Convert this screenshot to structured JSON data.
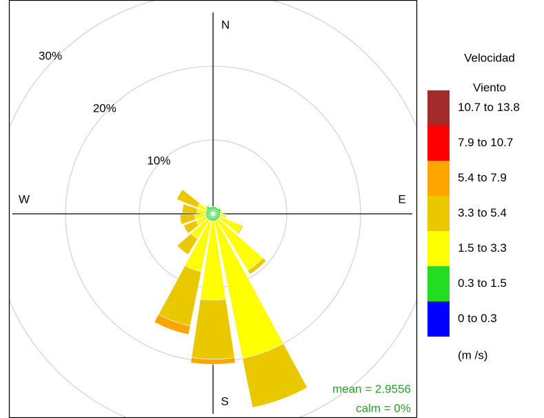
{
  "chart_data": {
    "type": "windrose",
    "compass": [
      "N",
      "E",
      "S",
      "W"
    ],
    "directions": [
      0,
      20,
      40,
      60,
      80,
      100,
      120,
      140,
      160,
      180,
      200,
      220,
      240,
      260,
      280,
      300,
      320,
      340
    ],
    "series": [
      {
        "name": "0 to 0.3",
        "color": "#0000ff",
        "values": [
          0,
          0,
          0,
          0,
          0,
          0,
          0,
          0,
          0,
          0,
          0,
          0,
          0,
          0,
          0,
          0,
          0,
          0
        ]
      },
      {
        "name": "0.3 to 1.5",
        "color": "#22dd22",
        "values": [
          1,
          1,
          1,
          1.2,
          1,
          1,
          1,
          1,
          1,
          1,
          1,
          1,
          1,
          1,
          1,
          1,
          1.2,
          1
        ]
      },
      {
        "name": "1.5 to 3.3",
        "color": "#ffff00",
        "values": [
          0,
          0,
          0,
          0,
          0.3,
          0.8,
          3.2,
          8,
          19,
          10.7,
          7,
          3,
          1.5,
          1.5,
          1.2,
          1.3,
          0.2,
          0
        ]
      },
      {
        "name": "3.3 to 5.4",
        "color": "#eac800",
        "values": [
          0,
          0,
          0,
          0,
          0,
          0,
          0.2,
          0.6,
          6.8,
          8,
          7.5,
          2.5,
          1.8,
          2,
          2,
          3,
          0,
          0
        ]
      },
      {
        "name": "5.4 to 7.9",
        "color": "#ffa500",
        "values": [
          0,
          0,
          0,
          0,
          0,
          0,
          0,
          0,
          0,
          0.7,
          1.2,
          0,
          0,
          0,
          0,
          0,
          0,
          0
        ]
      },
      {
        "name": "7.9 to 10.7",
        "color": "#ff0000",
        "values": [
          0,
          0,
          0,
          0,
          0,
          0,
          0,
          0,
          0,
          0,
          0,
          0,
          0,
          0,
          0,
          0,
          0,
          0
        ]
      },
      {
        "name": "10.7 to 13.8",
        "color": "#a52a2a",
        "values": [
          0,
          0,
          0,
          0,
          0,
          0,
          0,
          0,
          0,
          0,
          0,
          0,
          0,
          0,
          0,
          0,
          0,
          0
        ]
      }
    ],
    "rlim": [
      0,
      30
    ],
    "rticks": [
      {
        "value": 10,
        "label": "10%"
      },
      {
        "value": 20,
        "label": "20%"
      },
      {
        "value": 30,
        "label": "30%"
      }
    ],
    "legend_title": [
      "Velocidad",
      "Viento"
    ],
    "legend_units": "(m /s)",
    "annotations": [
      "mean = 2.9556",
      "calm = 0%"
    ]
  }
}
